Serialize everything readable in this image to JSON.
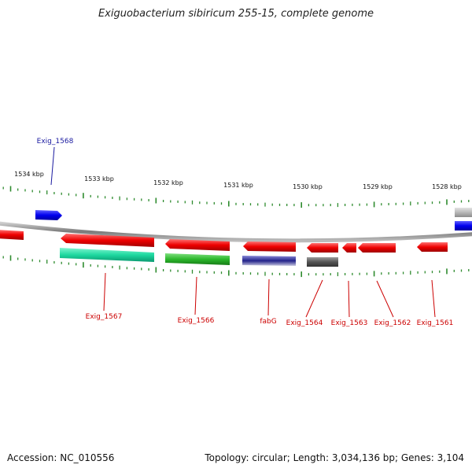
{
  "title": "Exiguobacterium sibiricum 255-15, complete genome",
  "footer": {
    "accession": "Accession: NC_010556",
    "summary": "Topology: circular; Length: 3,034,136 bp; Genes: 3,104"
  },
  "scale": {
    "ticks": [
      "1534 kbp",
      "1533 kbp",
      "1532 kbp",
      "1531 kbp",
      "1530 kbp",
      "1529 kbp",
      "1528 kbp"
    ]
  },
  "colors": {
    "forward_gene": "#0000ff",
    "reverse_gene": "#ff0000",
    "rna_gene": "#c8c8c8",
    "tick": "#2e8b2e",
    "backbone": "#8a8a8a",
    "label_forward": "#1a1aa0",
    "label_reverse": "#cc0000"
  },
  "genes": [
    {
      "id": "g1568",
      "label": "Exig_1568",
      "strand": "forward"
    },
    {
      "id": "g1567",
      "label": "Exig_1567",
      "strand": "reverse"
    },
    {
      "id": "g1566",
      "label": "Exig_1566",
      "strand": "reverse"
    },
    {
      "id": "gfabG",
      "label": "fabG",
      "strand": "reverse"
    },
    {
      "id": "g1564",
      "label": "Exig_1564",
      "strand": "reverse"
    },
    {
      "id": "g1563",
      "label": "Exig_1563",
      "strand": "reverse"
    },
    {
      "id": "g1562",
      "label": "Exig_1562",
      "strand": "reverse"
    },
    {
      "id": "g1561",
      "label": "Exig_1561",
      "strand": "reverse"
    }
  ]
}
